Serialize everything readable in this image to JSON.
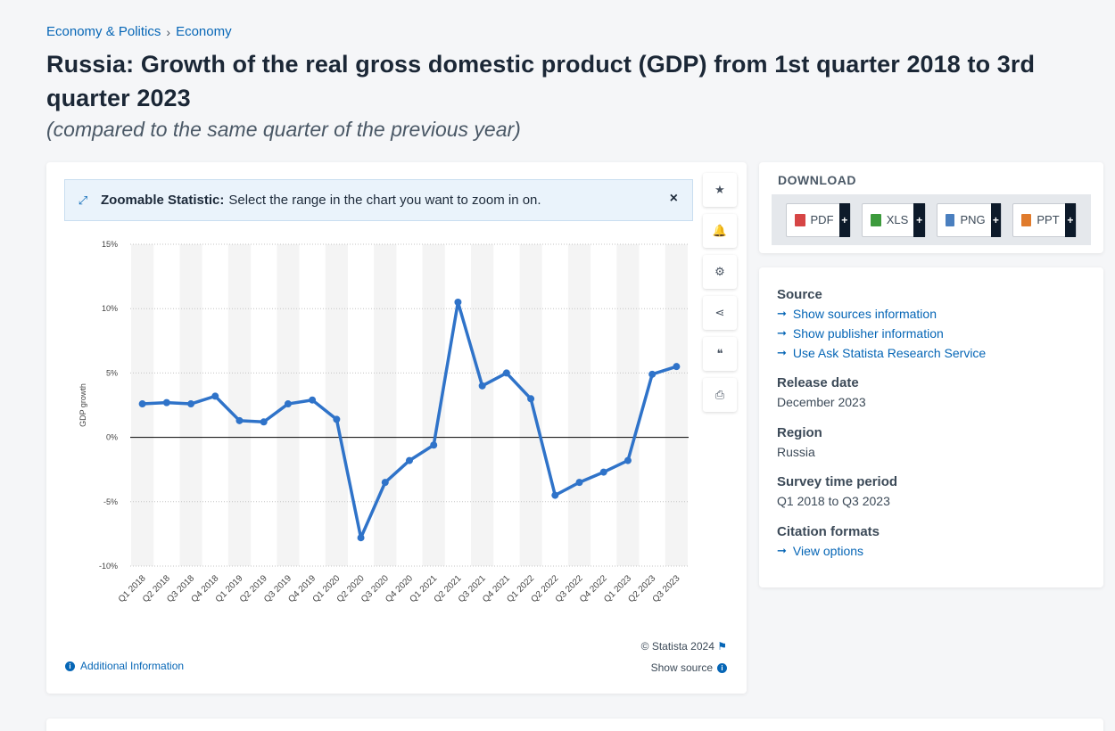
{
  "breadcrumb": {
    "first": "Economy & Politics",
    "second": "Economy",
    "sep": "›"
  },
  "page_title": "Russia: Growth of the real gross domestic product (GDP) from 1st quarter 2018 to 3rd quarter 2023",
  "page_subtitle": "(compared to the same quarter of the previous year)",
  "zoom": {
    "label": "Zoomable Statistic:",
    "text": "Select the range in the chart you want to zoom in on.",
    "close": "×",
    "icon": "⤢"
  },
  "tools": [
    {
      "name": "favorite-star-icon",
      "glyph": "★"
    },
    {
      "name": "notification-bell-icon",
      "glyph": "🔔"
    },
    {
      "name": "settings-gear-icon",
      "glyph": "⚙"
    },
    {
      "name": "share-icon",
      "glyph": "⋖"
    },
    {
      "name": "citation-quote-icon",
      "glyph": "❝"
    },
    {
      "name": "print-icon",
      "glyph": "⎙"
    }
  ],
  "chart_data": {
    "type": "line",
    "ylabel": "GDP growth",
    "ylim": [
      -10,
      15
    ],
    "yticks": [
      15,
      10,
      5,
      0,
      -5,
      -10
    ],
    "ytick_labels": [
      "15%",
      "10%",
      "5%",
      "0%",
      "-5%",
      "-10%"
    ],
    "categories": [
      "Q1 2018",
      "Q2 2018",
      "Q3 2018",
      "Q4 2018",
      "Q1 2019",
      "Q2 2019",
      "Q3 2019",
      "Q4 2019",
      "Q1 2020",
      "Q2 2020",
      "Q3 2020",
      "Q4 2020",
      "Q1 2021",
      "Q2 2021",
      "Q3 2021",
      "Q4 2021",
      "Q1 2022",
      "Q2 2022",
      "Q3 2022",
      "Q4 2022",
      "Q1 2023",
      "Q2 2023",
      "Q3 2023"
    ],
    "values": [
      2.6,
      2.7,
      2.6,
      3.2,
      1.3,
      1.2,
      2.6,
      2.9,
      1.4,
      -7.8,
      -3.5,
      -1.8,
      -0.6,
      10.5,
      4.0,
      5.0,
      3.0,
      -4.5,
      -3.5,
      -2.7,
      -1.8,
      4.9,
      5.5
    ],
    "color": "#2f73c9",
    "grid": true
  },
  "credit": "© Statista 2024",
  "show_source": "Show source",
  "additional_info": "Additional Information",
  "download": {
    "title": "DOWNLOAD",
    "buttons": [
      {
        "label": "PDF",
        "color": "#d64545"
      },
      {
        "label": "XLS",
        "color": "#3c9a3c"
      },
      {
        "label": "PNG",
        "color": "#4a7fbf"
      },
      {
        "label": "PPT",
        "color": "#e07b2c"
      }
    ],
    "plus": "+"
  },
  "info": {
    "source_heading": "Source",
    "source_links": [
      "Show sources information",
      "Show publisher information",
      "Use Ask Statista Research Service"
    ],
    "release_heading": "Release date",
    "release_value": "December 2023",
    "region_heading": "Region",
    "region_value": "Russia",
    "period_heading": "Survey time period",
    "period_value": "Q1 2018 to Q3 2023",
    "citation_heading": "Citation formats",
    "citation_link": "View options",
    "arrow": "➞"
  }
}
